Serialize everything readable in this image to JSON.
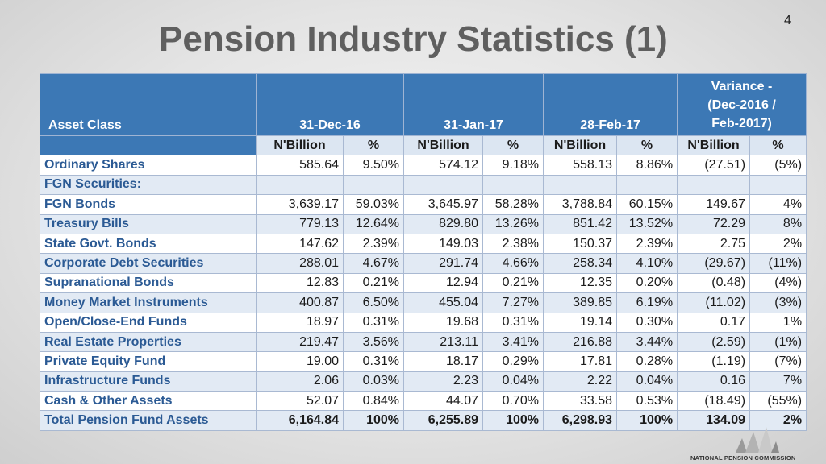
{
  "slide": {
    "number": "4",
    "title": "Pension Industry Statistics (1)"
  },
  "table": {
    "header": {
      "asset_class": "Asset Class",
      "date1": "31-Dec-16",
      "date2": "31-Jan-17",
      "date3": "28-Feb-17",
      "variance_line1": "Variance -",
      "variance_line2": "(Dec-2016 /",
      "variance_line3": "Feb-2017)"
    },
    "subheader": {
      "nbillion": "N'Billion",
      "percent": "%"
    },
    "rows": [
      {
        "label": "Ordinary Shares",
        "d1v": "585.64",
        "d1p": "9.50%",
        "d2v": "574.12",
        "d2p": "9.18%",
        "d3v": "558.13",
        "d3p": "8.86%",
        "vv": "(27.51)",
        "vp": "(5%)"
      },
      {
        "label": "FGN Securities:",
        "d1v": "",
        "d1p": "",
        "d2v": "",
        "d2p": "",
        "d3v": "",
        "d3p": "",
        "vv": "",
        "vp": ""
      },
      {
        "label": "FGN Bonds",
        "d1v": "3,639.17",
        "d1p": "59.03%",
        "d2v": "3,645.97",
        "d2p": "58.28%",
        "d3v": "3,788.84",
        "d3p": "60.15%",
        "vv": "149.67",
        "vp": "4%"
      },
      {
        "label": "Treasury Bills",
        "d1v": "779.13",
        "d1p": "12.64%",
        "d2v": "829.80",
        "d2p": "13.26%",
        "d3v": "851.42",
        "d3p": "13.52%",
        "vv": "72.29",
        "vp": "8%"
      },
      {
        "label": "State Govt. Bonds",
        "d1v": "147.62",
        "d1p": "2.39%",
        "d2v": "149.03",
        "d2p": "2.38%",
        "d3v": "150.37",
        "d3p": "2.39%",
        "vv": "2.75",
        "vp": "2%"
      },
      {
        "label": "Corporate Debt Securities",
        "d1v": "288.01",
        "d1p": "4.67%",
        "d2v": "291.74",
        "d2p": "4.66%",
        "d3v": "258.34",
        "d3p": "4.10%",
        "vv": "(29.67)",
        "vp": "(11%)"
      },
      {
        "label": "Supranational Bonds",
        "d1v": "12.83",
        "d1p": "0.21%",
        "d2v": "12.94",
        "d2p": "0.21%",
        "d3v": "12.35",
        "d3p": "0.20%",
        "vv": "(0.48)",
        "vp": "(4%)"
      },
      {
        "label": "Money Market Instruments",
        "d1v": "400.87",
        "d1p": "6.50%",
        "d2v": "455.04",
        "d2p": "7.27%",
        "d3v": "389.85",
        "d3p": "6.19%",
        "vv": "(11.02)",
        "vp": "(3%)"
      },
      {
        "label": "Open/Close-End Funds",
        "d1v": "18.97",
        "d1p": "0.31%",
        "d2v": "19.68",
        "d2p": "0.31%",
        "d3v": "19.14",
        "d3p": "0.30%",
        "vv": "0.17",
        "vp": "1%"
      },
      {
        "label": "Real Estate Properties",
        "d1v": "219.47",
        "d1p": "3.56%",
        "d2v": "213.11",
        "d2p": "3.41%",
        "d3v": "216.88",
        "d3p": "3.44%",
        "vv": "(2.59)",
        "vp": "(1%)"
      },
      {
        "label": "Private Equity Fund",
        "d1v": "19.00",
        "d1p": "0.31%",
        "d2v": "18.17",
        "d2p": "0.29%",
        "d3v": "17.81",
        "d3p": "0.28%",
        "vv": "(1.19)",
        "vp": "(7%)"
      },
      {
        "label": "Infrastructure Funds",
        "d1v": "2.06",
        "d1p": "0.03%",
        "d2v": "2.23",
        "d2p": "0.04%",
        "d3v": "2.22",
        "d3p": "0.04%",
        "vv": "0.16",
        "vp": "7%"
      },
      {
        "label": "Cash & Other Assets",
        "d1v": "52.07",
        "d1p": "0.84%",
        "d2v": "44.07",
        "d2p": "0.70%",
        "d3v": "33.58",
        "d3p": "0.53%",
        "vv": "(18.49)",
        "vp": "(55%)"
      },
      {
        "label": "Total Pension Fund Assets",
        "d1v": "6,164.84",
        "d1p": "100%",
        "d2v": "6,255.89",
        "d2p": "100%",
        "d3v": "6,298.93",
        "d3p": "100%",
        "vv": "134.09",
        "vp": "2%"
      }
    ]
  },
  "footer": {
    "logo_text": "NATIONAL PENSION COMMISSION"
  },
  "colors": {
    "header_blue": "#3c78b5",
    "label_blue": "#2b5a94",
    "stripe": "#e2eaf4",
    "title_gray": "#5f5f5f"
  }
}
